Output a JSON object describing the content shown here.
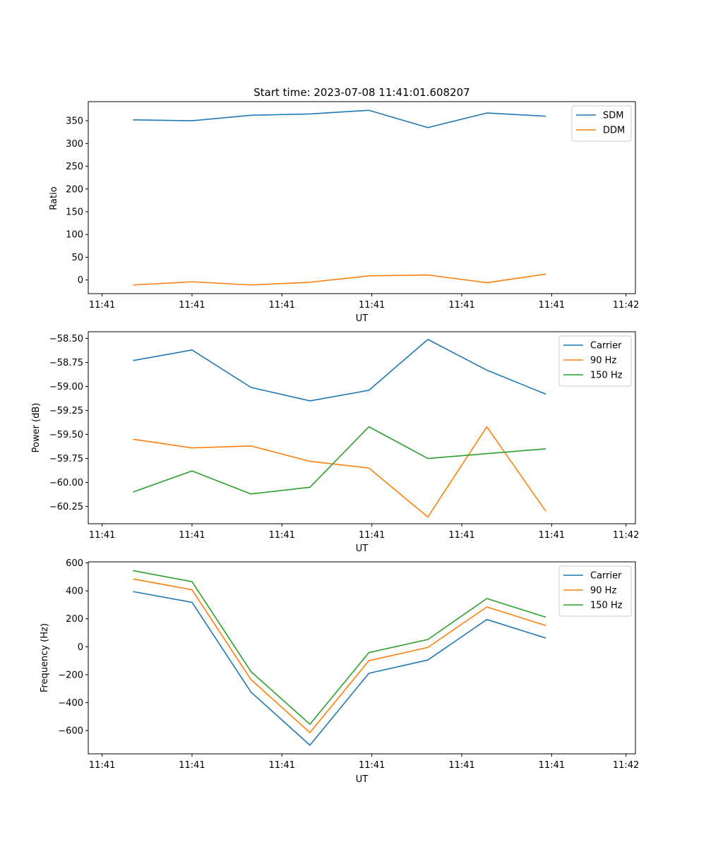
{
  "chart_data": [
    {
      "type": "line",
      "title": "Start time: 2023-07-08 11:41:01.608207",
      "xlabel": "UT",
      "ylabel": "Ratio",
      "x": [
        1,
        2,
        3,
        4,
        5,
        6,
        7,
        8
      ],
      "xlim": [
        0.24,
        9.52
      ],
      "xticks": [
        0.475,
        2.0,
        3.525,
        5.05,
        6.575,
        8.1,
        9.36
      ],
      "xtick_labels": [
        "11:41",
        "11:41",
        "11:41",
        "11:41",
        "11:41",
        "11:41",
        "11:42"
      ],
      "ylim": [
        -30,
        392
      ],
      "yticks": [
        0,
        50,
        100,
        150,
        200,
        250,
        300,
        350
      ],
      "ytick_labels": [
        "0",
        "50",
        "100",
        "150",
        "200",
        "250",
        "300",
        "350"
      ],
      "legend": "top-right",
      "series": [
        {
          "name": "SDM",
          "color": "#1f77b4",
          "values": [
            352,
            350,
            362,
            365,
            373,
            335,
            367,
            360
          ]
        },
        {
          "name": "DDM",
          "color": "#ff7f0e",
          "values": [
            -11,
            -4,
            -11,
            -5,
            9,
            11,
            -6,
            13
          ]
        }
      ]
    },
    {
      "type": "line",
      "title": "",
      "xlabel": "UT",
      "ylabel": "Power (dB)",
      "x": [
        1,
        2,
        3,
        4,
        5,
        6,
        7,
        8
      ],
      "xlim": [
        0.24,
        9.52
      ],
      "xticks": [
        0.475,
        2.0,
        3.525,
        5.05,
        6.575,
        8.1,
        9.36
      ],
      "xtick_labels": [
        "11:41",
        "11:41",
        "11:41",
        "11:41",
        "11:41",
        "11:41",
        "11:42"
      ],
      "ylim": [
        -60.43,
        -58.43
      ],
      "yticks": [
        -60.25,
        -60.0,
        -59.75,
        -59.5,
        -59.25,
        -59.0,
        -58.75,
        -58.5
      ],
      "ytick_labels": [
        "−60.25",
        "−60.00",
        "−59.75",
        "−59.50",
        "−59.25",
        "−59.00",
        "−58.75",
        "−58.50"
      ],
      "legend": "top-right",
      "series": [
        {
          "name": "Carrier",
          "color": "#1f77b4",
          "values": [
            -58.73,
            -58.62,
            -59.01,
            -59.15,
            -59.04,
            -58.51,
            -58.83,
            -59.08
          ]
        },
        {
          "name": "90 Hz",
          "color": "#ff7f0e",
          "values": [
            -59.55,
            -59.64,
            -59.62,
            -59.78,
            -59.85,
            -60.36,
            -59.42,
            -60.3
          ]
        },
        {
          "name": "150 Hz",
          "color": "#2ca02c",
          "values": [
            -60.1,
            -59.88,
            -60.12,
            -60.05,
            -59.42,
            -59.75,
            -59.7,
            -59.65
          ]
        }
      ]
    },
    {
      "type": "line",
      "title": "",
      "xlabel": "UT",
      "ylabel": "Frequency (Hz)",
      "x": [
        1,
        2,
        3,
        4,
        5,
        6,
        7,
        8
      ],
      "xlim": [
        0.24,
        9.52
      ],
      "xticks": [
        0.475,
        2.0,
        3.525,
        5.05,
        6.575,
        8.1,
        9.36
      ],
      "xtick_labels": [
        "11:41",
        "11:41",
        "11:41",
        "11:41",
        "11:41",
        "11:41",
        "11:42"
      ],
      "ylim": [
        -767,
        608
      ],
      "yticks": [
        -600,
        -400,
        -200,
        0,
        200,
        400,
        600
      ],
      "ytick_labels": [
        "−600",
        "−400",
        "−200",
        "0",
        "200",
        "400",
        "600"
      ],
      "legend": "top-right",
      "series": [
        {
          "name": "Carrier",
          "color": "#1f77b4",
          "values": [
            395,
            318,
            -325,
            -705,
            -190,
            -95,
            195,
            62
          ]
        },
        {
          "name": "90 Hz",
          "color": "#ff7f0e",
          "values": [
            485,
            408,
            -235,
            -615,
            -100,
            -5,
            285,
            152
          ]
        },
        {
          "name": "150 Hz",
          "color": "#2ca02c",
          "values": [
            545,
            466,
            -178,
            -555,
            -42,
            52,
            345,
            212
          ]
        }
      ]
    }
  ]
}
